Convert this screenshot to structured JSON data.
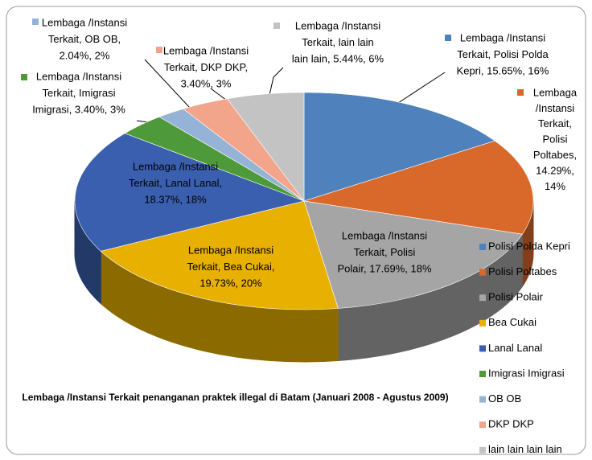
{
  "chart_data": {
    "type": "pie3d",
    "title": "Lembaga /Instansi Terkait penanganan praktek illegal di Batam (Januari 2008 - Agustus 2009)",
    "categories": [
      "Polisi Polda Kepri",
      "Polisi Poltabes",
      "Polisi Polair",
      "Bea Cukai",
      "Lanal Lanal",
      "Imigrasi Imigrasi",
      "OB OB",
      "DKP DKP",
      "lain lain lain lain"
    ],
    "values": [
      15.65,
      14.29,
      17.69,
      19.73,
      18.37,
      3.4,
      2.04,
      3.4,
      5.44
    ],
    "value_labels": [
      [
        "Lembaga /Instansi",
        "Terkait, Polisi Polda",
        "Kepri, 15.65%, 16%"
      ],
      [
        "Lembaga",
        "/Instansi",
        "Terkait,",
        "Polisi",
        "Poltabes,",
        "14.29%,",
        "14%"
      ],
      [
        "Lembaga /Instansi",
        "Terkait, Polisi",
        "Polair, 17.69%, 18%"
      ],
      [
        "Lembaga /Instansi",
        "Terkait, Bea Cukai,",
        "19.73%, 20%"
      ],
      [
        "Lembaga /Instansi",
        "Terkait, Lanal Lanal,",
        "18.37%, 18%"
      ],
      [
        "Lembaga /Instansi",
        "Terkait, Imigrasi",
        "Imigrasi, 3.40%, 3%"
      ],
      [
        "Lembaga /Instansi",
        "Terkait, OB OB,",
        "2.04%, 2%"
      ],
      [
        "Lembaga /Instansi",
        "Terkait, DKP DKP,",
        "3.40%, 3%"
      ],
      [
        "Lembaga /Instansi",
        "Terkait, lain lain",
        "lain lain, 5.44%, 6%"
      ]
    ],
    "colors": [
      "#4f81bd",
      "#d9692a",
      "#a5a5a5",
      "#e8b000",
      "#3a5fae",
      "#4e9a3a",
      "#95b3d7",
      "#f2a58a",
      "#c3c3c3"
    ],
    "legend": "right"
  }
}
